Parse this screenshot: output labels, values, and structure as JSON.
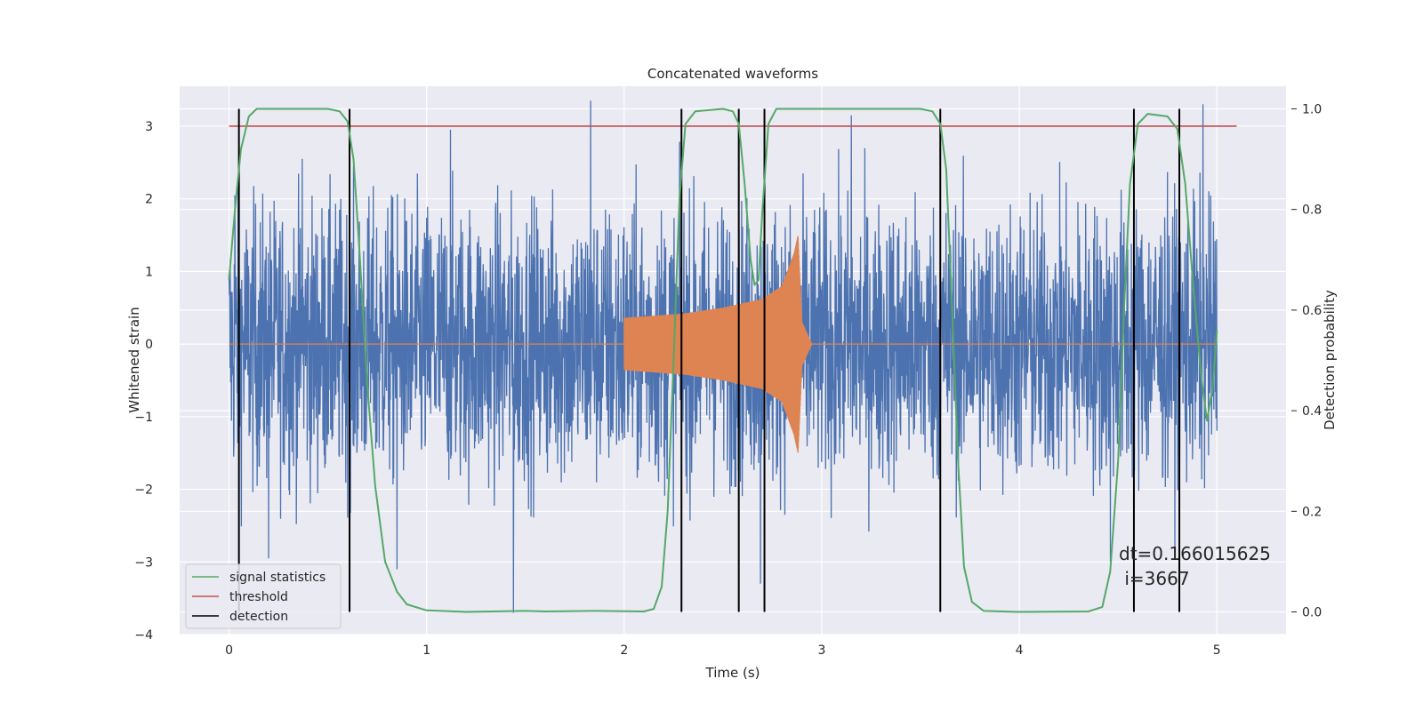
{
  "chart_data": {
    "type": "line",
    "title": "Concatenated waveforms",
    "xlabel": "Time (s)",
    "ylabel": "Whitened strain",
    "y2label": "Detection probability",
    "xlim": [
      -0.25,
      5.35
    ],
    "ylim": [
      -4.0,
      3.55
    ],
    "y2lim": [
      -0.045,
      1.045
    ],
    "xticks": [
      0,
      1,
      2,
      3,
      4,
      5
    ],
    "yticks": [
      -4,
      -3,
      -2,
      -1,
      0,
      1,
      2,
      3
    ],
    "y2ticks": [
      0.0,
      0.2,
      0.4,
      0.6,
      0.8,
      1.0
    ],
    "grid": true,
    "background": "#EAEAF2",
    "legend_location": "lower left",
    "series": [
      {
        "name": "",
        "role": "whitened strain noise",
        "color": "#4C72B0",
        "axis": "left",
        "x_range": [
          0,
          5
        ],
        "typical_amplitude": 1.0,
        "peak_amplitude_examples": [
          {
            "x": 0.03,
            "y": 2.05
          },
          {
            "x": 0.37,
            "y": 2.55
          },
          {
            "x": 1.12,
            "y": 2.95
          },
          {
            "x": 1.83,
            "y": 3.35
          },
          {
            "x": 1.44,
            "y": -3.7
          },
          {
            "x": 2.69,
            "y": -3.3
          },
          {
            "x": 3.15,
            "y": 3.15
          },
          {
            "x": 4.93,
            "y": 3.3
          },
          {
            "x": 0.2,
            "y": -2.95
          },
          {
            "x": 0.85,
            "y": -3.1
          },
          {
            "x": 4.46,
            "y": -3.0
          }
        ]
      },
      {
        "name": "",
        "role": "injected chirp",
        "color": "#DD8452",
        "axis": "left",
        "baseline_y": 0,
        "chirp_start": 2.0,
        "chirp_merger": 2.88,
        "envelope": [
          {
            "x": 2.0,
            "y": 0.36
          },
          {
            "x": 2.3,
            "y": 0.42
          },
          {
            "x": 2.5,
            "y": 0.5
          },
          {
            "x": 2.7,
            "y": 0.62
          },
          {
            "x": 2.8,
            "y": 0.8
          },
          {
            "x": 2.86,
            "y": 1.25
          },
          {
            "x": 2.88,
            "y": 1.5
          },
          {
            "x": 2.9,
            "y": 0.3
          },
          {
            "x": 2.95,
            "y": 0.0
          }
        ]
      },
      {
        "name": "signal statistics",
        "color": "#55A868",
        "axis": "right",
        "points": [
          [
            0.0,
            0.66
          ],
          [
            0.03,
            0.8
          ],
          [
            0.06,
            0.92
          ],
          [
            0.1,
            0.985
          ],
          [
            0.14,
            1.0
          ],
          [
            0.5,
            1.0
          ],
          [
            0.56,
            0.995
          ],
          [
            0.6,
            0.975
          ],
          [
            0.63,
            0.9
          ],
          [
            0.66,
            0.72
          ],
          [
            0.7,
            0.45
          ],
          [
            0.74,
            0.25
          ],
          [
            0.79,
            0.1
          ],
          [
            0.85,
            0.04
          ],
          [
            0.9,
            0.015
          ],
          [
            1.0,
            0.003
          ],
          [
            1.2,
            0.0
          ],
          [
            1.5,
            0.002
          ],
          [
            1.6,
            0.001
          ],
          [
            1.85,
            0.002
          ],
          [
            2.1,
            0.001
          ],
          [
            2.15,
            0.006
          ],
          [
            2.19,
            0.05
          ],
          [
            2.22,
            0.2
          ],
          [
            2.25,
            0.5
          ],
          [
            2.28,
            0.82
          ],
          [
            2.31,
            0.97
          ],
          [
            2.36,
            0.995
          ],
          [
            2.5,
            1.0
          ],
          [
            2.55,
            0.995
          ],
          [
            2.58,
            0.97
          ],
          [
            2.61,
            0.85
          ],
          [
            2.64,
            0.7
          ],
          [
            2.66,
            0.65
          ],
          [
            2.68,
            0.66
          ],
          [
            2.7,
            0.8
          ],
          [
            2.73,
            0.97
          ],
          [
            2.77,
            1.0
          ],
          [
            3.5,
            1.0
          ],
          [
            3.56,
            0.995
          ],
          [
            3.6,
            0.97
          ],
          [
            3.63,
            0.88
          ],
          [
            3.66,
            0.6
          ],
          [
            3.69,
            0.3
          ],
          [
            3.72,
            0.09
          ],
          [
            3.76,
            0.02
          ],
          [
            3.82,
            0.002
          ],
          [
            4.0,
            0.0
          ],
          [
            4.35,
            0.001
          ],
          [
            4.42,
            0.01
          ],
          [
            4.46,
            0.08
          ],
          [
            4.5,
            0.3
          ],
          [
            4.53,
            0.6
          ],
          [
            4.56,
            0.85
          ],
          [
            4.6,
            0.97
          ],
          [
            4.65,
            0.99
          ],
          [
            4.75,
            0.985
          ],
          [
            4.8,
            0.96
          ],
          [
            4.84,
            0.85
          ],
          [
            4.88,
            0.65
          ],
          [
            4.92,
            0.47
          ],
          [
            4.95,
            0.38
          ],
          [
            4.98,
            0.45
          ],
          [
            5.0,
            0.56
          ]
        ]
      },
      {
        "name": "threshold",
        "color": "#C44E52",
        "axis": "left",
        "y": 3.0,
        "x_range": [
          0,
          5.1
        ]
      },
      {
        "name": "detection",
        "color": "#000000",
        "axis": "right",
        "y_range": [
          0,
          1
        ],
        "x_positions": [
          0.05,
          0.61,
          2.29,
          2.58,
          2.71,
          3.6,
          4.58,
          4.81
        ]
      }
    ],
    "annotations": [
      "dt=0.166015625",
      " i=3667"
    ]
  },
  "colors": {
    "axes_background": "#EAEAF2",
    "grid": "#FFFFFF",
    "noise": "#4C72B0",
    "chirp": "#DD8452",
    "statistics": "#55A868",
    "threshold": "#C44E52",
    "detection": "#000000",
    "text": "#262626"
  }
}
